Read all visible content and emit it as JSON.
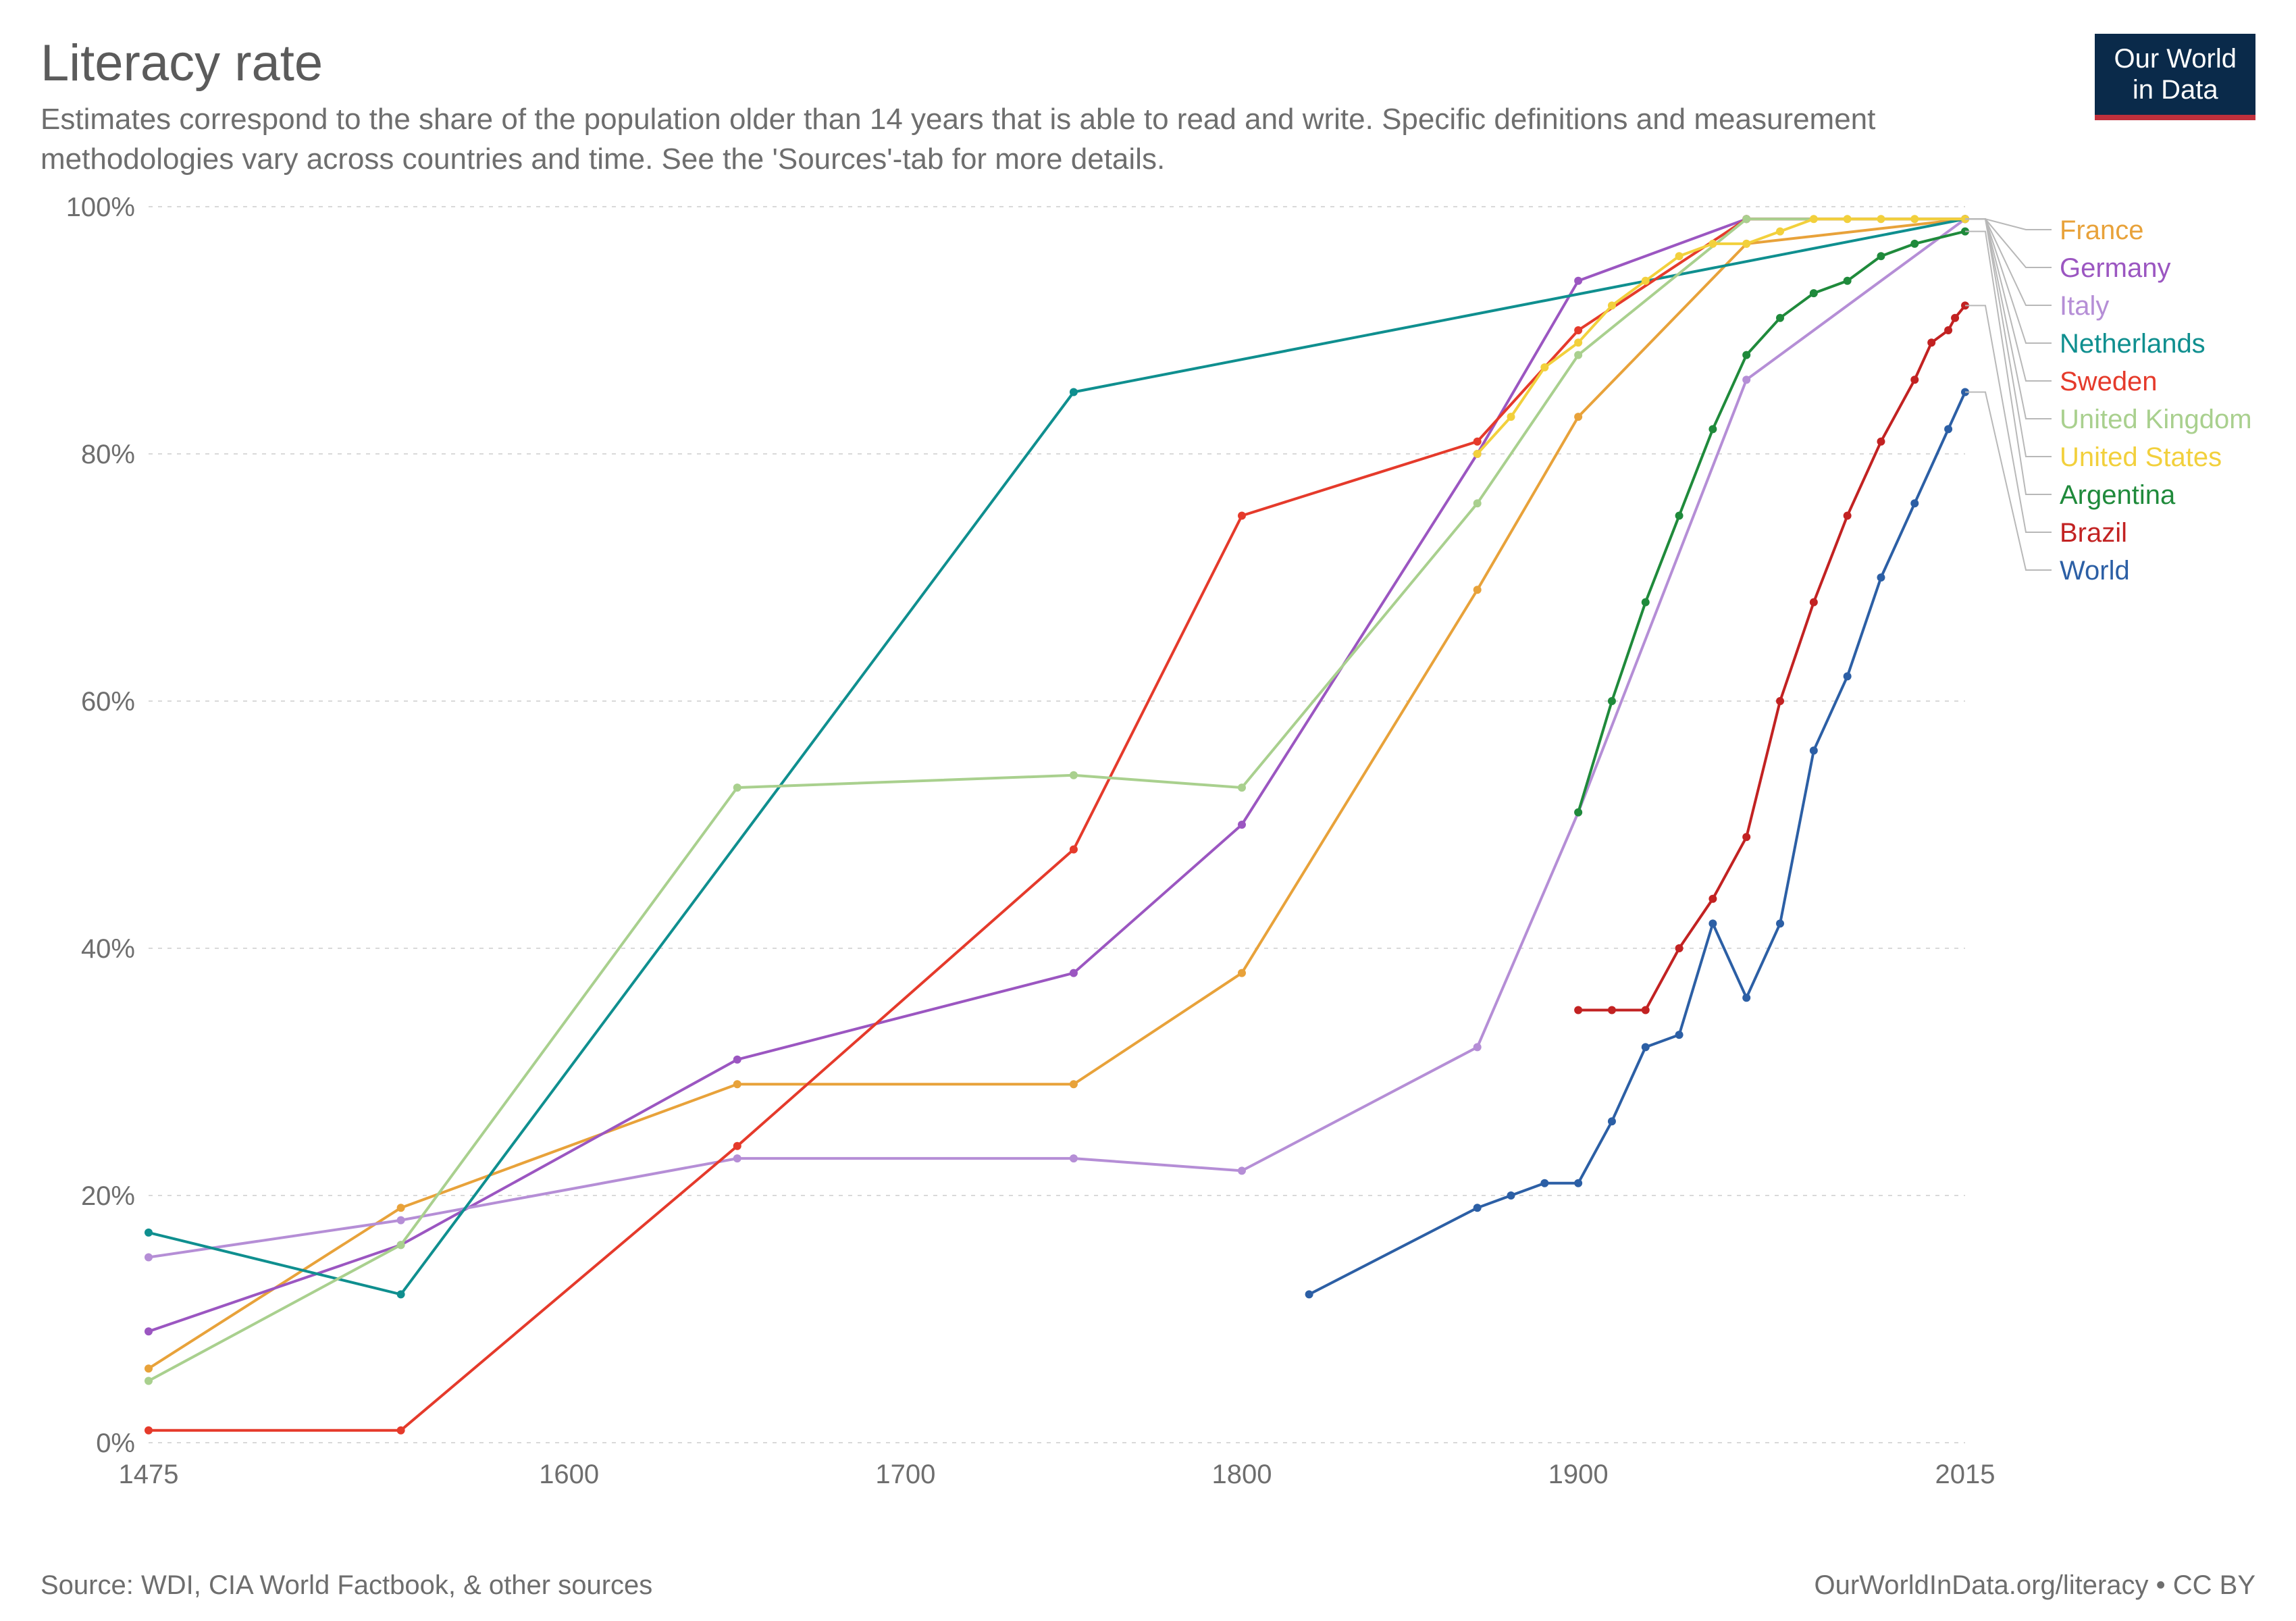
{
  "title": "Literacy rate",
  "subtitle": "Estimates correspond to the share of the population older than 14 years that is able to read and write. Specific definitions and measurement methodologies vary across countries and time. See the 'Sources'-tab for more details.",
  "logo_line1": "Our World",
  "logo_line2": "in Data",
  "footer_left": "Source: WDI, CIA World Factbook, & other sources",
  "footer_right": "OurWorldInData.org/literacy • CC BY",
  "chart": {
    "type": "line",
    "background_color": "#ffffff",
    "grid_color": "#d9d9d9",
    "axis_text_color": "#6e6e6e",
    "title_fontsize": 76,
    "subtitle_fontsize": 44,
    "axis_fontsize": 40,
    "legend_fontsize": 40,
    "line_width": 4,
    "marker_radius": 6,
    "x": {
      "min": 1475,
      "max": 2015,
      "ticks": [
        1475,
        1600,
        1700,
        1800,
        1900,
        2015
      ]
    },
    "y": {
      "min": 0,
      "max": 100,
      "ticks": [
        0,
        20,
        40,
        60,
        80,
        100
      ],
      "suffix": "%"
    },
    "legend_order": [
      "France",
      "Germany",
      "Italy",
      "Netherlands",
      "Sweden",
      "United Kingdom",
      "United States",
      "Argentina",
      "Brazil",
      "World"
    ],
    "series": [
      {
        "name": "France",
        "color": "#e8a23a",
        "data": [
          [
            1475,
            6
          ],
          [
            1550,
            19
          ],
          [
            1650,
            29
          ],
          [
            1750,
            29
          ],
          [
            1800,
            38
          ],
          [
            1870,
            69
          ],
          [
            1900,
            83
          ],
          [
            1950,
            97
          ],
          [
            2015,
            99
          ]
        ]
      },
      {
        "name": "Germany",
        "color": "#9b56c1",
        "data": [
          [
            1475,
            9
          ],
          [
            1550,
            16
          ],
          [
            1650,
            31
          ],
          [
            1750,
            38
          ],
          [
            1800,
            50
          ],
          [
            1870,
            80
          ],
          [
            1900,
            94
          ],
          [
            1950,
            99
          ],
          [
            2015,
            99
          ]
        ]
      },
      {
        "name": "Italy",
        "color": "#b58ed6",
        "data": [
          [
            1475,
            15
          ],
          [
            1550,
            18
          ],
          [
            1650,
            23
          ],
          [
            1750,
            23
          ],
          [
            1800,
            22
          ],
          [
            1870,
            32
          ],
          [
            1900,
            51
          ],
          [
            1950,
            86
          ],
          [
            2015,
            99
          ]
        ]
      },
      {
        "name": "Netherlands",
        "color": "#0f8f8f",
        "data": [
          [
            1475,
            17
          ],
          [
            1550,
            12
          ],
          [
            1750,
            85
          ],
          [
            2015,
            99
          ]
        ]
      },
      {
        "name": "Sweden",
        "color": "#e53a2b",
        "data": [
          [
            1475,
            1
          ],
          [
            1550,
            1
          ],
          [
            1650,
            24
          ],
          [
            1750,
            48
          ],
          [
            1800,
            75
          ],
          [
            1870,
            81
          ],
          [
            1900,
            90
          ],
          [
            1950,
            99
          ],
          [
            2015,
            99
          ]
        ]
      },
      {
        "name": "United Kingdom",
        "color": "#a9d08e",
        "data": [
          [
            1475,
            5
          ],
          [
            1550,
            16
          ],
          [
            1650,
            53
          ],
          [
            1750,
            54
          ],
          [
            1800,
            53
          ],
          [
            1870,
            76
          ],
          [
            1900,
            88
          ],
          [
            1950,
            99
          ],
          [
            2015,
            99
          ]
        ]
      },
      {
        "name": "United States",
        "color": "#f2d03c",
        "data": [
          [
            1870,
            80
          ],
          [
            1880,
            83
          ],
          [
            1890,
            87
          ],
          [
            1900,
            89
          ],
          [
            1910,
            92
          ],
          [
            1920,
            94
          ],
          [
            1930,
            96
          ],
          [
            1940,
            97
          ],
          [
            1950,
            97
          ],
          [
            1960,
            98
          ],
          [
            1970,
            99
          ],
          [
            1980,
            99
          ],
          [
            1990,
            99
          ],
          [
            2000,
            99
          ],
          [
            2015,
            99
          ]
        ]
      },
      {
        "name": "Argentina",
        "color": "#1f8a3b",
        "data": [
          [
            1900,
            51
          ],
          [
            1910,
            60
          ],
          [
            1920,
            68
          ],
          [
            1930,
            75
          ],
          [
            1940,
            82
          ],
          [
            1950,
            88
          ],
          [
            1960,
            91
          ],
          [
            1970,
            93
          ],
          [
            1980,
            94
          ],
          [
            1990,
            96
          ],
          [
            2000,
            97
          ],
          [
            2015,
            98
          ]
        ]
      },
      {
        "name": "Brazil",
        "color": "#c22222",
        "data": [
          [
            1900,
            35
          ],
          [
            1910,
            35
          ],
          [
            1920,
            35
          ],
          [
            1930,
            40
          ],
          [
            1940,
            44
          ],
          [
            1950,
            49
          ],
          [
            1960,
            60
          ],
          [
            1970,
            68
          ],
          [
            1980,
            75
          ],
          [
            1990,
            81
          ],
          [
            2000,
            86
          ],
          [
            2005,
            89
          ],
          [
            2010,
            90
          ],
          [
            2012,
            91
          ],
          [
            2015,
            92
          ]
        ]
      },
      {
        "name": "World",
        "color": "#2c5fa5",
        "data": [
          [
            1820,
            12
          ],
          [
            1870,
            19
          ],
          [
            1880,
            20
          ],
          [
            1890,
            21
          ],
          [
            1900,
            21
          ],
          [
            1910,
            26
          ],
          [
            1920,
            32
          ],
          [
            1930,
            33
          ],
          [
            1940,
            42
          ],
          [
            1950,
            36
          ],
          [
            1960,
            42
          ],
          [
            1970,
            56
          ],
          [
            1980,
            62
          ],
          [
            1990,
            70
          ],
          [
            2000,
            76
          ],
          [
            2010,
            82
          ],
          [
            2015,
            85
          ]
        ]
      }
    ]
  }
}
